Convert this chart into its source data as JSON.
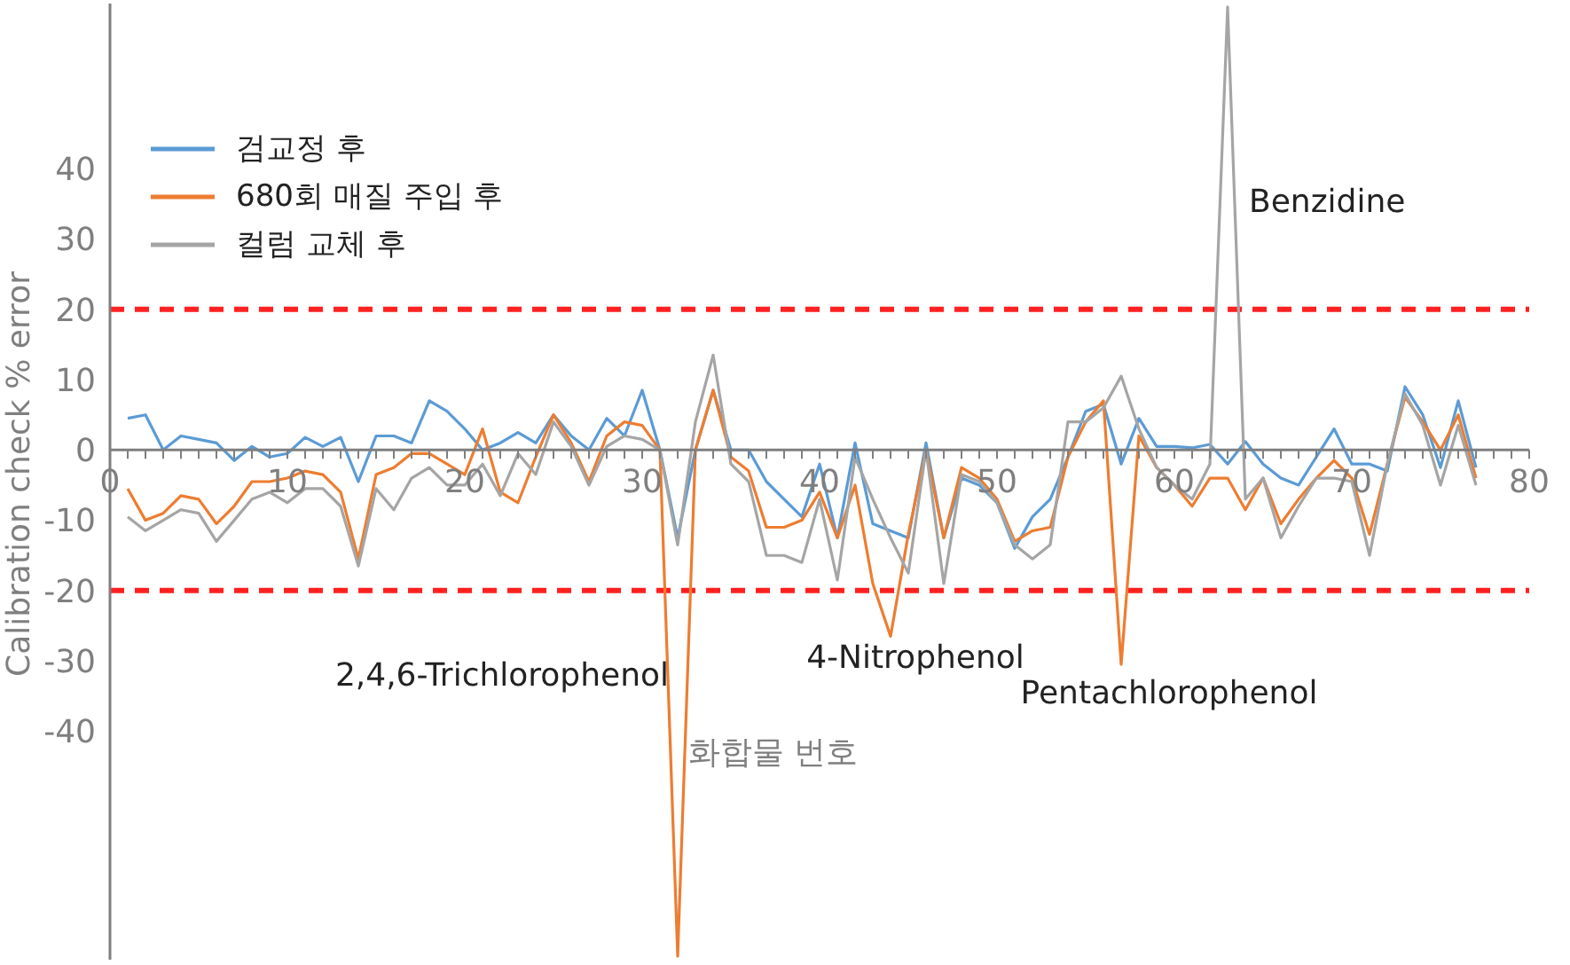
{
  "chart_data": {
    "type": "line",
    "xlabel": "화합물 번호",
    "ylabel": "Calibration check % error",
    "x": [
      1,
      2,
      3,
      4,
      5,
      6,
      7,
      8,
      9,
      10,
      11,
      12,
      13,
      14,
      15,
      16,
      17,
      18,
      19,
      20,
      21,
      22,
      23,
      24,
      25,
      26,
      27,
      28,
      29,
      30,
      31,
      32,
      33,
      34,
      35,
      36,
      37,
      38,
      39,
      40,
      41,
      42,
      43,
      44,
      45,
      46,
      47,
      48,
      49,
      50,
      51,
      52,
      53,
      54,
      55,
      56,
      57,
      58,
      59,
      60,
      61,
      62,
      63,
      64,
      65,
      66,
      67,
      68,
      69,
      70,
      71,
      72,
      73,
      74,
      75,
      76,
      77
    ],
    "series": [
      {
        "name": "검교정 후",
        "color": "#5b9bd5",
        "values": [
          4.5,
          5,
          0,
          2,
          1.5,
          1,
          -1.5,
          0.5,
          -1,
          -0.5,
          1.8,
          0.5,
          1.8,
          -4.5,
          2,
          2,
          1,
          7,
          5.5,
          3,
          0,
          1,
          2.5,
          1,
          5,
          2,
          0,
          4.5,
          2,
          8.5,
          0,
          -12.5,
          0,
          8.5,
          0,
          0,
          -4.5,
          -7,
          -9.5,
          -2,
          -12.5,
          1,
          -10.5,
          -11.5,
          -12.5,
          1,
          -12.5,
          -4,
          -5,
          -7.5,
          -14,
          -9.5,
          -7,
          -1,
          5.5,
          6.5,
          -2,
          4.5,
          0.5,
          0.5,
          0.3,
          0.8,
          -2,
          1.2,
          -2,
          -4,
          -5,
          -1,
          3,
          -2,
          -2,
          -3,
          9,
          5,
          -2.5,
          7,
          -2.5
        ]
      },
      {
        "name": "680회 매질 주입 후",
        "color": "#ed7d31",
        "values": [
          -5.5,
          -10,
          -9,
          -6.5,
          -7,
          -10.5,
          -8,
          -4.5,
          -4.5,
          -4,
          -3,
          -3.5,
          -6,
          -15.5,
          -3.5,
          -2.5,
          -0.5,
          -0.5,
          -2,
          -3.5,
          3,
          -6,
          -7.5,
          -1,
          5,
          1,
          -4.5,
          2,
          4,
          3.5,
          0,
          -72,
          0,
          8.5,
          -1,
          -3,
          -11,
          -11,
          -10,
          -6,
          -12.5,
          -5,
          -19,
          -26.5,
          -12,
          0,
          -12.5,
          -2.5,
          -4,
          -7,
          -13,
          -11.5,
          -11,
          -1,
          4,
          7,
          -30.5,
          2,
          -2.5,
          -5,
          -8,
          -4,
          -4,
          -8.5,
          -4,
          -10.5,
          -7,
          -4,
          -1.5,
          -4,
          -12,
          -2,
          7.5,
          4,
          0,
          5,
          -4
        ]
      },
      {
        "name": "컬럼 교체 후",
        "color": "#a5a5a5",
        "values": [
          -9.5,
          -11.5,
          -10,
          -8.5,
          -9,
          -13,
          -10,
          -7,
          -6,
          -7.5,
          -5.5,
          -5.5,
          -8,
          -16.5,
          -5.5,
          -8.5,
          -4,
          -2.5,
          -5,
          -5,
          -2,
          -6.5,
          -0.5,
          -3.5,
          4,
          0.5,
          -5,
          0.5,
          2,
          1.5,
          0,
          -13.5,
          4,
          13.5,
          -2,
          -4.5,
          -15,
          -15,
          -16,
          -7,
          -18.5,
          -1,
          -7,
          -12.5,
          -17.5,
          0,
          -19,
          -3.5,
          -4.5,
          -7.5,
          -13.5,
          -15.5,
          -13.5,
          4,
          4,
          6,
          10.5,
          3,
          -2.5,
          -5,
          -7,
          -2,
          63,
          -7,
          -4,
          -12.5,
          -8,
          -4,
          -4,
          -4.5,
          -15,
          -2,
          8,
          3.5,
          -5,
          3.5,
          -5
        ]
      }
    ],
    "xlim": [
      0,
      80
    ],
    "xticks": [
      0,
      10,
      20,
      30,
      40,
      50,
      60,
      70,
      80
    ],
    "ylim": [
      -72.5,
      63.5
    ],
    "yticks": [
      -40,
      -30,
      -20,
      -10,
      0,
      10,
      20,
      30,
      40
    ],
    "ref_lines": [
      {
        "axis": "y",
        "value": 20,
        "color": "#ff2020",
        "line_style": "dashed"
      },
      {
        "axis": "y",
        "value": -20,
        "color": "#ff2020",
        "line_style": "dashed"
      }
    ],
    "annotations": [
      "2,4,6-Trichlorophenol",
      {
        "text": "4-Nitrophenol",
        "x": 44,
        "y": -26.5
      },
      {
        "text": "Pentachlorophenol",
        "x": 57,
        "y": -30.5
      },
      "Benzidine"
    ],
    "legend": "top left",
    "marker": "none",
    "line_style": "solid",
    "grid": false
  }
}
